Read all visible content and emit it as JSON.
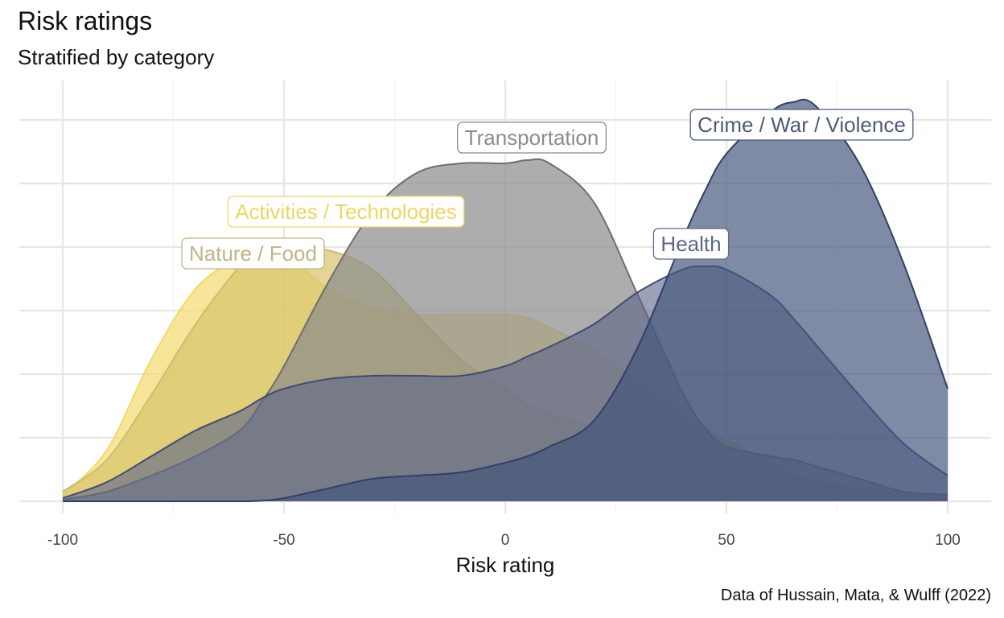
{
  "title": "Risk ratings",
  "subtitle": "Stratified by category",
  "caption": "Data of Hussain, Mata, & Wulff (2022)",
  "chart_data": {
    "type": "area",
    "xlabel": "Risk rating",
    "ylabel": "",
    "xlim": [
      -100,
      100
    ],
    "ylim": [
      0,
      0.0125
    ],
    "x_ticks": [
      -100,
      -50,
      0,
      50,
      100
    ],
    "x_tick_labels": [
      "-100",
      "-50",
      "0",
      "50",
      "100"
    ],
    "grid": true,
    "legend": "none (direct labels)",
    "x": [
      -100,
      -90,
      -80,
      -70,
      -60,
      -55,
      -50,
      -40,
      -30,
      -20,
      -10,
      0,
      5,
      10,
      20,
      30,
      40,
      45,
      50,
      60,
      65,
      70,
      80,
      90,
      100
    ],
    "series": [
      {
        "name": "Activities / Technologies",
        "color": "#f4dc6e",
        "stroke": "#f1da64",
        "opacity": 0.7,
        "label_color": "#ecd668",
        "values": [
          0.0002,
          0.0016,
          0.0044,
          0.0066,
          0.0076,
          0.0078,
          0.0077,
          0.0066,
          0.006,
          0.0058,
          0.0058,
          0.0058,
          0.0057,
          0.0054,
          0.0047,
          0.0037,
          0.0027,
          0.0023,
          0.0019,
          0.0012,
          0.0008,
          0.0006,
          0.0003,
          0.00012,
          5e-05
        ]
      },
      {
        "name": "Nature / Food",
        "color": "#d6c36a",
        "stroke": "#cbbd70",
        "opacity": 0.7,
        "label_color": "#bfb585",
        "values": [
          0.0003,
          0.0013,
          0.0033,
          0.0055,
          0.0073,
          0.0078,
          0.0079,
          0.0078,
          0.0072,
          0.0058,
          0.0044,
          0.0035,
          0.003,
          0.0027,
          0.0023,
          0.0019,
          0.0014,
          0.0012,
          0.0011,
          0.0009,
          0.0008,
          0.0006,
          0.0004,
          0.0002,
          0.0001
        ]
      },
      {
        "name": "Transportation",
        "color": "#8a8a8a",
        "stroke": "#6e6e6e",
        "opacity": 0.7,
        "label_color": "#8c8c8c",
        "values": [
          5e-05,
          0.0003,
          0.0008,
          0.0014,
          0.0022,
          0.0031,
          0.0042,
          0.0068,
          0.009,
          0.0102,
          0.0105,
          0.0105,
          0.0106,
          0.0105,
          0.0093,
          0.0064,
          0.0034,
          0.0023,
          0.0017,
          0.0014,
          0.0013,
          0.0011,
          0.0007,
          0.0003,
          0.0002
        ]
      },
      {
        "name": "Health",
        "color": "#5a6388",
        "stroke": "#424b72",
        "opacity": 0.6,
        "label_color": "#5f6687",
        "values": [
          0.0001,
          0.0006,
          0.0014,
          0.0022,
          0.0028,
          0.0032,
          0.0035,
          0.0038,
          0.0039,
          0.0039,
          0.0039,
          0.0042,
          0.0045,
          0.0048,
          0.0055,
          0.0065,
          0.0072,
          0.0073,
          0.0072,
          0.0064,
          0.0057,
          0.0049,
          0.0033,
          0.0018,
          0.0008
        ]
      },
      {
        "name": "Crime / War / Violence",
        "color": "#42547a",
        "stroke": "#2f4068",
        "opacity": 0.68,
        "label_color": "#4e5a7a",
        "values": [
          0,
          0,
          0,
          0,
          0,
          2e-05,
          0.0001,
          0.0004,
          0.0007,
          0.0008,
          0.0009,
          0.0012,
          0.0014,
          0.0017,
          0.0025,
          0.0048,
          0.0081,
          0.0096,
          0.0108,
          0.0121,
          0.0124,
          0.0123,
          0.0105,
          0.0074,
          0.0035
        ]
      }
    ],
    "labels_at": [
      {
        "series": "Activities / Technologies",
        "x": -36,
        "y": 0.009
      },
      {
        "series": "Nature / Food",
        "x": -57,
        "y": 0.0077
      },
      {
        "series": "Transportation",
        "x": 6,
        "y": 0.0113
      },
      {
        "series": "Health",
        "x": 42,
        "y": 0.008
      },
      {
        "series": "Crime / War / Violence",
        "x": 67,
        "y": 0.0117
      }
    ]
  }
}
